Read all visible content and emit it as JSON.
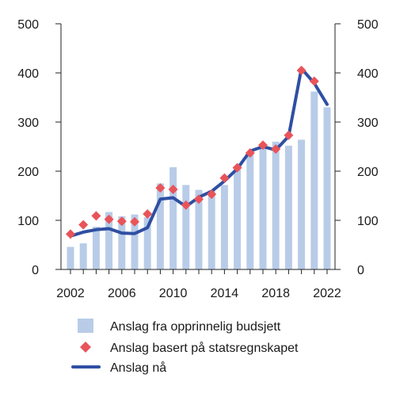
{
  "chart_data": {
    "type": "bar",
    "x": [
      2002,
      2003,
      2004,
      2005,
      2006,
      2007,
      2008,
      2009,
      2010,
      2011,
      2012,
      2013,
      2014,
      2015,
      2016,
      2017,
      2018,
      2019,
      2020,
      2021,
      2022
    ],
    "ylim": [
      0,
      500
    ],
    "y_ticks": [
      "0",
      "100",
      "200",
      "300",
      "400",
      "500"
    ],
    "x_ticks": [
      "2002",
      "2006",
      "2010",
      "2014",
      "2018",
      "2022"
    ],
    "grid": false,
    "legend_position": "bottom",
    "series": [
      {
        "name": "Anslag fra opprinnelig budsjett",
        "kind": "bar",
        "color": "#b8cce8",
        "values": [
          46,
          53,
          87,
          117,
          108,
          112,
          106,
          175,
          208,
          172,
          162,
          161,
          172,
          203,
          234,
          252,
          260,
          252,
          264,
          362,
          330
        ]
      },
      {
        "name": "Anslag basert på statsregnskapet",
        "kind": "scatter",
        "marker": "diamond",
        "color": "#e8545a",
        "values": [
          72,
          91,
          109,
          102,
          98,
          97,
          113,
          166,
          163,
          131,
          143,
          153,
          186,
          207,
          237,
          253,
          245,
          273,
          405,
          383,
          null
        ]
      },
      {
        "name": "Anslag nå",
        "kind": "line",
        "color": "#2f4fa2",
        "values": [
          68,
          76,
          81,
          83,
          74,
          73,
          85,
          143,
          146,
          128,
          147,
          159,
          180,
          205,
          241,
          250,
          243,
          271,
          409,
          379,
          336
        ]
      }
    ]
  }
}
